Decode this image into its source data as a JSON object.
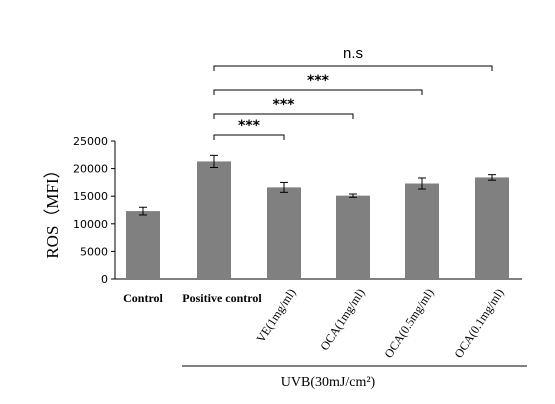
{
  "chart_data": {
    "type": "bar",
    "categories": [
      "Control",
      "Positive control",
      "VE(1mg/ml)",
      "OCA(1mg/ml)",
      "OCA(0.5mg/ml)",
      "OCA(0.1mg/ml)"
    ],
    "values": [
      12300,
      21300,
      16600,
      15100,
      17300,
      18400
    ],
    "errors": [
      700,
      1100,
      900,
      300,
      1000,
      500
    ],
    "ylabel": "ROS（MFI）",
    "ylim": [
      0,
      25000
    ],
    "yticks": [
      0,
      5000,
      10000,
      15000,
      20000,
      25000
    ],
    "ytick_labels": [
      "0",
      "5000",
      "10000",
      "15000",
      "20000",
      "25000"
    ],
    "bar_color": "#808080",
    "group_label": "UVB(30mJ/cm²)",
    "group_start_index": 2,
    "comparisons": [
      {
        "from": 1,
        "to": 2,
        "label": "***"
      },
      {
        "from": 1,
        "to": 3,
        "label": "***"
      },
      {
        "from": 1,
        "to": 4,
        "label": "***"
      },
      {
        "from": 1,
        "to": 5,
        "label": "n.s"
      }
    ],
    "grid": false,
    "legend": "none"
  }
}
